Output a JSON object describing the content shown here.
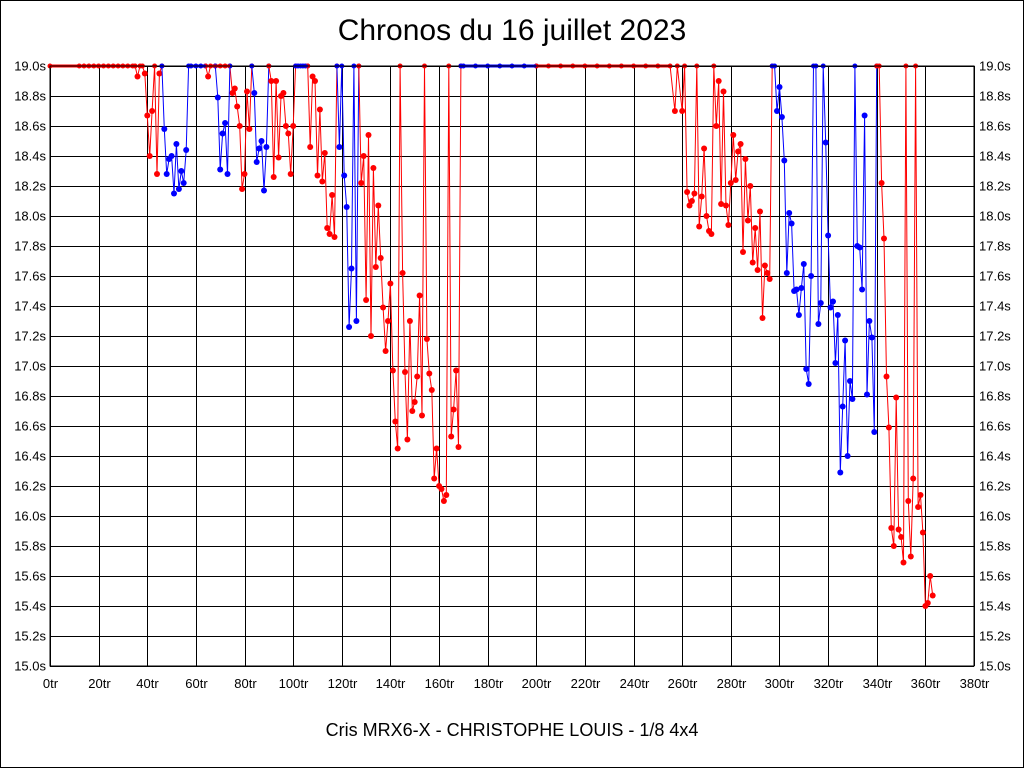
{
  "chart_data": {
    "type": "line",
    "title": "Chronos du 16 juillet 2023",
    "caption": "Cris MRX6-X - CHRISTOPHE LOUIS - 1/8 4x4",
    "xlabel": "",
    "ylabel": "",
    "xlim": [
      0,
      380
    ],
    "ylim": [
      15.0,
      19.0
    ],
    "x_tick_step": 20,
    "y_tick_step": 0.2,
    "x_tick_suffix": "tr",
    "y_tick_suffix": "s",
    "grid": true,
    "colors": {
      "red": "#ff0000",
      "blue": "#0000ff"
    },
    "series": [
      {
        "name": "red-1",
        "color": "#ff0000",
        "points": [
          [
            0,
            19.0
          ],
          [
            12,
            19.0
          ],
          [
            14,
            19.0
          ],
          [
            16,
            19.0
          ],
          [
            18,
            19.0
          ],
          [
            20,
            19.0
          ],
          [
            22,
            19.0
          ],
          [
            24,
            19.0
          ],
          [
            26,
            19.0
          ],
          [
            28,
            19.0
          ],
          [
            30,
            19.0
          ],
          [
            32,
            19.0
          ],
          [
            34,
            19.0
          ],
          [
            35,
            19.0
          ],
          [
            36,
            18.93
          ],
          [
            37,
            19.0
          ],
          [
            38,
            19.0
          ],
          [
            39,
            18.95
          ],
          [
            40,
            18.67
          ],
          [
            41,
            18.4
          ],
          [
            42,
            18.7
          ],
          [
            43,
            19.0
          ],
          [
            44,
            18.28
          ],
          [
            45,
            18.95
          ],
          [
            46,
            19.0
          ]
        ]
      },
      {
        "name": "blue-1",
        "color": "#0000ff",
        "points": [
          [
            46,
            19.0
          ],
          [
            47,
            18.58
          ],
          [
            48,
            18.28
          ],
          [
            49,
            18.38
          ],
          [
            50,
            18.4
          ],
          [
            51,
            18.15
          ],
          [
            52,
            18.48
          ],
          [
            53,
            18.18
          ],
          [
            54,
            18.3
          ],
          [
            55,
            18.22
          ],
          [
            56,
            18.44
          ],
          [
            57,
            19.0
          ],
          [
            58,
            19.0
          ],
          [
            60,
            19.0
          ],
          [
            62,
            19.0
          ],
          [
            64,
            19.0
          ]
        ]
      },
      {
        "name": "red-2",
        "color": "#ff0000",
        "points": [
          [
            64,
            19.0
          ],
          [
            65,
            18.93
          ],
          [
            66,
            19.0
          ],
          [
            68,
            19.0
          ],
          [
            70,
            19.0
          ],
          [
            72,
            19.0
          ],
          [
            74,
            19.0
          ],
          [
            75,
            18.82
          ],
          [
            76,
            18.85
          ],
          [
            77,
            18.73
          ],
          [
            78,
            18.6
          ],
          [
            79,
            18.18
          ],
          [
            80,
            18.28
          ],
          [
            81,
            18.83
          ],
          [
            82,
            18.58
          ],
          [
            83,
            19.0
          ]
        ]
      },
      {
        "name": "blue-2",
        "color": "#0000ff",
        "points": [
          [
            83,
            19.0
          ],
          [
            84,
            18.82
          ],
          [
            85,
            18.36
          ],
          [
            86,
            18.45
          ],
          [
            87,
            18.5
          ],
          [
            88,
            18.17
          ],
          [
            89,
            18.46
          ],
          [
            90,
            19.0
          ]
        ]
      },
      {
        "name": "red-3",
        "color": "#ff0000",
        "points": [
          [
            90,
            19.0
          ],
          [
            91,
            18.9
          ],
          [
            92,
            18.26
          ],
          [
            93,
            18.9
          ],
          [
            94,
            18.39
          ],
          [
            95,
            18.8
          ],
          [
            96,
            18.82
          ],
          [
            97,
            18.6
          ],
          [
            98,
            18.55
          ],
          [
            99,
            18.28
          ],
          [
            100,
            18.6
          ],
          [
            101,
            19.0
          ]
        ]
      },
      {
        "name": "blue-3",
        "color": "#0000ff",
        "points": [
          [
            68,
            19.0
          ],
          [
            69,
            18.79
          ],
          [
            70,
            18.31
          ],
          [
            71,
            18.55
          ],
          [
            72,
            18.62
          ],
          [
            73,
            18.28
          ],
          [
            74,
            19.0
          ]
        ]
      },
      {
        "name": "blue-4",
        "color": "#0000ff",
        "points": [
          [
            101,
            19.0
          ],
          [
            102,
            19.0
          ],
          [
            103,
            19.0
          ],
          [
            104,
            19.0
          ],
          [
            105,
            19.0
          ],
          [
            106,
            19.0
          ]
        ]
      },
      {
        "name": "red-4",
        "color": "#ff0000",
        "points": [
          [
            106,
            19.0
          ],
          [
            107,
            18.46
          ],
          [
            108,
            18.93
          ],
          [
            109,
            18.9
          ],
          [
            110,
            18.27
          ],
          [
            111,
            18.71
          ],
          [
            112,
            18.23
          ],
          [
            113,
            18.42
          ],
          [
            114,
            17.92
          ],
          [
            115,
            17.88
          ],
          [
            116,
            18.14
          ],
          [
            117,
            17.86
          ],
          [
            118,
            19.0
          ]
        ]
      },
      {
        "name": "blue-5",
        "color": "#0000ff",
        "points": [
          [
            118,
            19.0
          ],
          [
            119,
            18.46
          ],
          [
            120,
            19.0
          ],
          [
            121,
            18.27
          ],
          [
            122,
            18.06
          ],
          [
            123,
            17.26
          ],
          [
            124,
            17.65
          ],
          [
            125,
            19.0
          ],
          [
            126,
            17.3
          ],
          [
            127,
            19.0
          ]
        ]
      },
      {
        "name": "red-5",
        "color": "#ff0000",
        "points": [
          [
            127,
            19.0
          ],
          [
            128,
            18.22
          ],
          [
            129,
            18.4
          ],
          [
            130,
            17.44
          ],
          [
            131,
            18.54
          ],
          [
            132,
            17.2
          ],
          [
            133,
            18.32
          ],
          [
            134,
            17.66
          ],
          [
            135,
            18.07
          ],
          [
            136,
            17.72
          ],
          [
            137,
            17.39
          ],
          [
            138,
            17.1
          ],
          [
            139,
            17.3
          ],
          [
            140,
            17.55
          ],
          [
            141,
            16.97
          ],
          [
            142,
            16.63
          ],
          [
            143,
            16.45
          ],
          [
            144,
            19.0
          ],
          [
            145,
            17.62
          ],
          [
            146,
            16.96
          ],
          [
            147,
            16.51
          ],
          [
            148,
            17.3
          ],
          [
            149,
            16.7
          ],
          [
            150,
            16.76
          ],
          [
            151,
            16.93
          ],
          [
            152,
            17.47
          ],
          [
            153,
            16.67
          ],
          [
            154,
            19.0
          ],
          [
            155,
            17.18
          ],
          [
            156,
            16.95
          ],
          [
            157,
            16.84
          ],
          [
            158,
            16.25
          ],
          [
            159,
            16.45
          ],
          [
            160,
            16.2
          ],
          [
            161,
            16.18
          ],
          [
            162,
            16.1
          ],
          [
            163,
            16.14
          ],
          [
            164,
            19.0
          ],
          [
            165,
            16.53
          ],
          [
            166,
            16.71
          ],
          [
            167,
            16.97
          ],
          [
            168,
            16.46
          ],
          [
            169,
            19.0
          ]
        ]
      },
      {
        "name": "blue-6",
        "color": "#0000ff",
        "points": [
          [
            169,
            19.0
          ],
          [
            170,
            19.0
          ],
          [
            175,
            19.0
          ],
          [
            180,
            19.0
          ],
          [
            185,
            19.0
          ],
          [
            190,
            19.0
          ],
          [
            195,
            19.0
          ],
          [
            200,
            19.0
          ]
        ]
      },
      {
        "name": "red-6",
        "color": "#ff0000",
        "points": [
          [
            200,
            19.0
          ],
          [
            205,
            19.0
          ],
          [
            210,
            19.0
          ],
          [
            215,
            19.0
          ],
          [
            220,
            19.0
          ],
          [
            225,
            19.0
          ],
          [
            230,
            19.0
          ],
          [
            235,
            19.0
          ],
          [
            240,
            19.0
          ],
          [
            245,
            19.0
          ],
          [
            250,
            19.0
          ],
          [
            255,
            19.0
          ],
          [
            257,
            18.7
          ],
          [
            258,
            19.0
          ],
          [
            260,
            18.7
          ],
          [
            261,
            19.0
          ],
          [
            262,
            18.16
          ],
          [
            263,
            18.07
          ],
          [
            264,
            18.1
          ],
          [
            265,
            18.15
          ],
          [
            266,
            19.0
          ],
          [
            267,
            17.93
          ],
          [
            268,
            18.13
          ],
          [
            269,
            18.45
          ],
          [
            270,
            18.0
          ],
          [
            271,
            17.9
          ],
          [
            272,
            17.88
          ],
          [
            273,
            19.0
          ],
          [
            274,
            18.6
          ],
          [
            275,
            18.9
          ],
          [
            276,
            18.08
          ],
          [
            277,
            18.83
          ],
          [
            278,
            18.07
          ],
          [
            279,
            17.94
          ],
          [
            280,
            18.22
          ],
          [
            281,
            18.54
          ],
          [
            282,
            18.24
          ],
          [
            283,
            18.43
          ],
          [
            284,
            18.48
          ],
          [
            285,
            17.76
          ],
          [
            286,
            18.38
          ],
          [
            287,
            17.97
          ],
          [
            288,
            18.2
          ],
          [
            289,
            17.69
          ],
          [
            290,
            17.92
          ],
          [
            291,
            17.64
          ],
          [
            292,
            18.03
          ],
          [
            293,
            17.32
          ],
          [
            294,
            17.67
          ],
          [
            295,
            17.62
          ],
          [
            296,
            17.58
          ],
          [
            297,
            19.0
          ]
        ]
      },
      {
        "name": "blue-7",
        "color": "#0000ff",
        "points": [
          [
            297,
            19.0
          ],
          [
            298,
            19.0
          ],
          [
            299,
            18.7
          ],
          [
            300,
            18.86
          ],
          [
            301,
            18.66
          ],
          [
            302,
            18.37
          ],
          [
            303,
            17.62
          ],
          [
            304,
            18.02
          ],
          [
            305,
            17.95
          ],
          [
            306,
            17.5
          ],
          [
            307,
            17.51
          ],
          [
            308,
            17.34
          ],
          [
            309,
            17.52
          ],
          [
            310,
            17.68
          ],
          [
            311,
            16.98
          ],
          [
            312,
            16.88
          ],
          [
            313,
            17.6
          ],
          [
            314,
            19.0
          ],
          [
            315,
            19.0
          ],
          [
            316,
            17.28
          ],
          [
            317,
            17.42
          ],
          [
            318,
            19.0
          ],
          [
            319,
            18.49
          ],
          [
            320,
            17.87
          ],
          [
            321,
            17.39
          ],
          [
            322,
            17.43
          ],
          [
            323,
            17.02
          ],
          [
            324,
            17.34
          ],
          [
            325,
            16.29
          ],
          [
            326,
            16.73
          ],
          [
            327,
            17.17
          ],
          [
            328,
            16.4
          ],
          [
            329,
            16.9
          ],
          [
            330,
            16.78
          ],
          [
            331,
            19.0
          ],
          [
            332,
            17.8
          ],
          [
            333,
            17.79
          ],
          [
            334,
            17.51
          ],
          [
            335,
            18.67
          ],
          [
            336,
            16.81
          ],
          [
            337,
            17.3
          ],
          [
            338,
            17.19
          ],
          [
            339,
            16.56
          ],
          [
            340,
            19.0
          ]
        ]
      },
      {
        "name": "red-7",
        "color": "#ff0000",
        "points": [
          [
            340,
            19.0
          ],
          [
            341,
            19.0
          ],
          [
            342,
            18.22
          ],
          [
            343,
            17.85
          ],
          [
            344,
            16.93
          ],
          [
            345,
            16.59
          ],
          [
            346,
            15.92
          ],
          [
            347,
            15.8
          ],
          [
            348,
            16.79
          ],
          [
            349,
            15.91
          ],
          [
            350,
            15.86
          ],
          [
            351,
            15.69
          ],
          [
            352,
            19.0
          ],
          [
            353,
            16.1
          ],
          [
            354,
            15.73
          ],
          [
            355,
            16.25
          ],
          [
            356,
            19.0
          ],
          [
            357,
            16.06
          ],
          [
            358,
            16.14
          ],
          [
            359,
            15.89
          ],
          [
            360,
            15.4
          ],
          [
            361,
            15.42
          ],
          [
            362,
            15.6
          ],
          [
            363,
            15.47
          ]
        ]
      }
    ]
  }
}
